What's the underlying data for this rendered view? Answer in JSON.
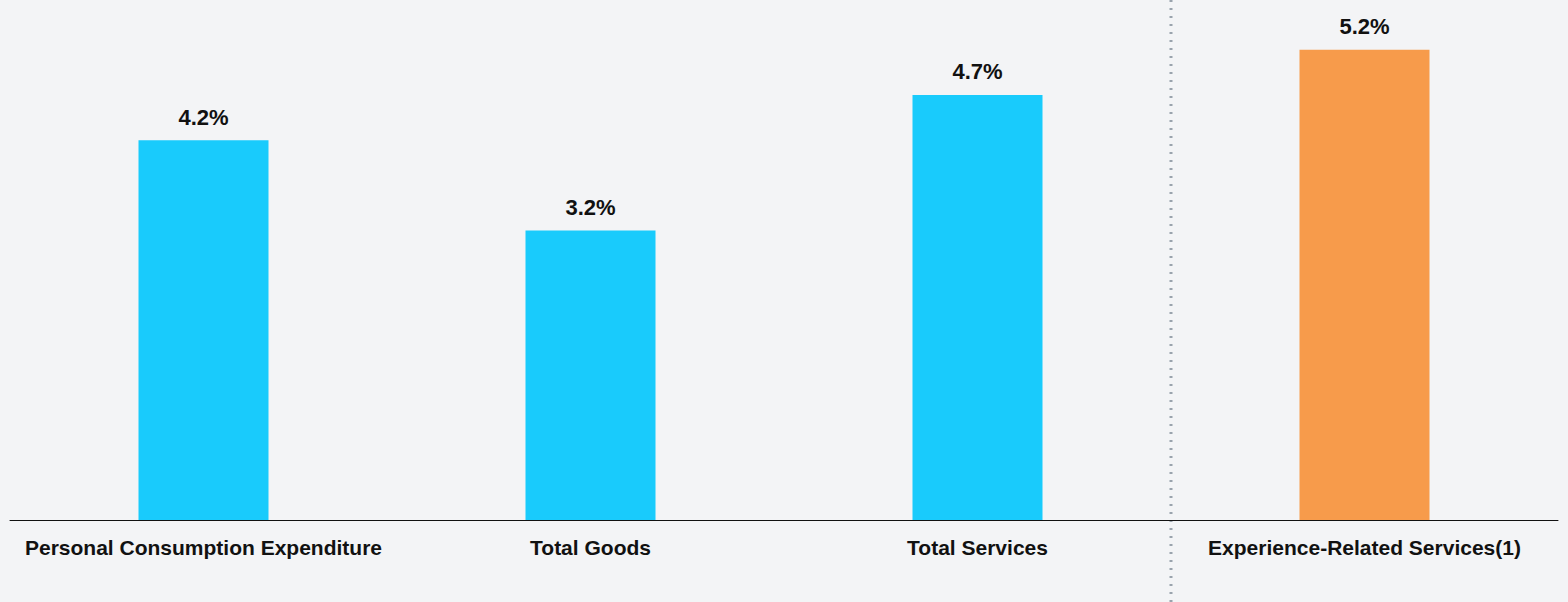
{
  "chart_data": {
    "type": "bar",
    "categories": [
      "Personal Consumption Expenditure",
      "Total Goods",
      "Total Services",
      "Experience-Related Services(1)"
    ],
    "values": [
      4.2,
      3.2,
      4.7,
      5.2
    ],
    "value_labels": [
      "4.2%",
      "3.2%",
      "4.7%",
      "5.2%"
    ],
    "colors": [
      "#19cbfc",
      "#19cbfc",
      "#19cbfc",
      "#f79b4b"
    ],
    "ylim": [
      0,
      5.75
    ],
    "grid": false,
    "data_labels": true,
    "tick_labels": "x"
  }
}
